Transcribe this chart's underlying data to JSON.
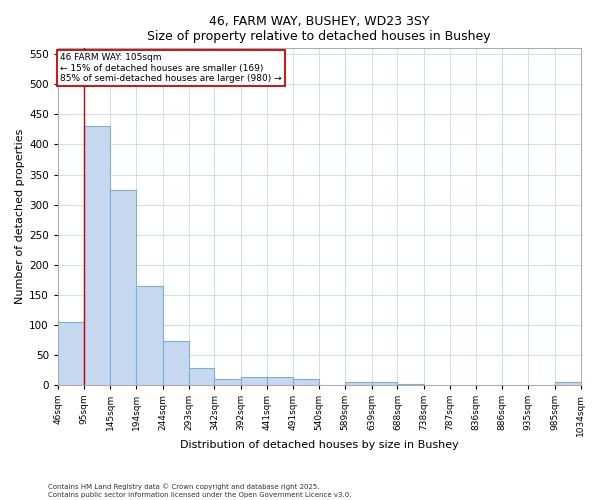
{
  "title_line1": "46, FARM WAY, BUSHEY, WD23 3SY",
  "title_line2": "Size of property relative to detached houses in Bushey",
  "xlabel": "Distribution of detached houses by size in Bushey",
  "ylabel": "Number of detached properties",
  "bar_edges": [
    46,
    95,
    145,
    194,
    244,
    293,
    342,
    392,
    441,
    491,
    540,
    589,
    639,
    688,
    738,
    787,
    836,
    886,
    935,
    985,
    1034
  ],
  "bar_heights": [
    105,
    430,
    325,
    165,
    73,
    28,
    10,
    13,
    13,
    9,
    0,
    5,
    5,
    2,
    0,
    0,
    0,
    0,
    0,
    4
  ],
  "bar_color": "#c5d8f0",
  "bar_edge_color": "#7bafd4",
  "grid_color": "#c8d8eb",
  "reference_line_x": 95,
  "annotation_title": "46 FARM WAY: 105sqm",
  "annotation_line2": "← 15% of detached houses are smaller (169)",
  "annotation_line3": "85% of semi-detached houses are larger (980) →",
  "annotation_box_color": "#ffffff",
  "annotation_border_color": "#cc0000",
  "ref_line_color": "#cc0000",
  "ylim": [
    0,
    560
  ],
  "yticks": [
    0,
    50,
    100,
    150,
    200,
    250,
    300,
    350,
    400,
    450,
    500,
    550
  ],
  "tick_labels": [
    "46sqm",
    "95sqm",
    "145sqm",
    "194sqm",
    "244sqm",
    "293sqm",
    "342sqm",
    "392sqm",
    "441sqm",
    "491sqm",
    "540sqm",
    "589sqm",
    "639sqm",
    "688sqm",
    "738sqm",
    "787sqm",
    "836sqm",
    "886sqm",
    "935sqm",
    "985sqm",
    "1034sqm"
  ],
  "footer_line1": "Contains HM Land Registry data © Crown copyright and database right 2025.",
  "footer_line2": "Contains public sector information licensed under the Open Government Licence v3.0.",
  "bg_color": "#ffffff"
}
